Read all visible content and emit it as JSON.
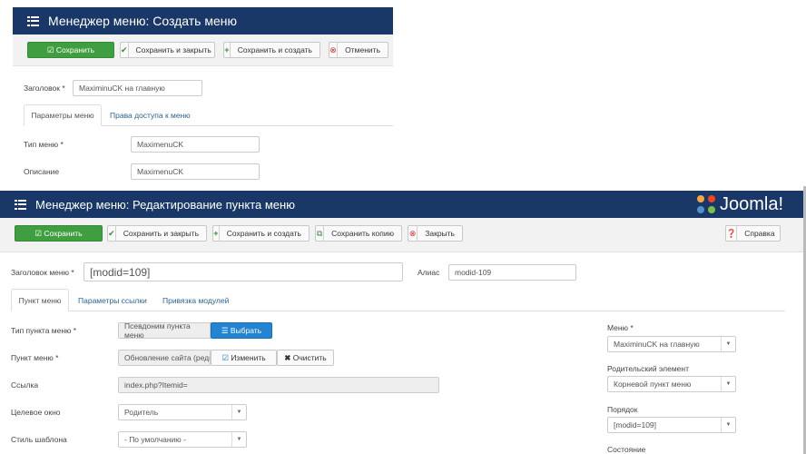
{
  "create_menu": {
    "title": "Менеджер меню: Создать меню",
    "toolbar": {
      "save": "Сохранить",
      "save_close": "Сохранить и закрыть",
      "save_new": "Сохранить и создать",
      "cancel": "Отменить"
    },
    "title_label": "Заголовок *",
    "title_value": "MaximinuCK на главную",
    "tabs": [
      "Параметры меню",
      "Права доступа к меню"
    ],
    "menu_type_label": "Тип меню *",
    "menu_type_value": "MaximenuCK",
    "description_label": "Описание",
    "description_value": "MaximenuCK"
  },
  "edit_item": {
    "title": "Менеджер меню: Редактирование пункта меню",
    "logo": "Joomla!",
    "toolbar": {
      "save": "Сохранить",
      "save_close": "Сохранить и закрыть",
      "save_new": "Сохранить и создать",
      "save_copy": "Сохранить копию",
      "close": "Закрыть",
      "help": "Справка"
    },
    "title_label": "Заголовок меню *",
    "title_value": "[modid=109]",
    "alias_label": "Алиас",
    "alias_value": "modid-109",
    "tabs": [
      "Пункт меню",
      "Параметры ссылки",
      "Привязка модулей"
    ],
    "fields": {
      "item_type_label": "Тип пункта меню *",
      "item_type_value": "Псевдоним пункта меню",
      "select_btn": "Выбрать",
      "menu_item_label": "Пункт меню *",
      "menu_item_value": "Обновление сайта (реди",
      "edit_btn": "Изменить",
      "clear_btn": "Очистить",
      "link_label": "Ссылка",
      "link_value": "index.php?Itemid=",
      "target_label": "Целевое окно",
      "target_value": "Родитель",
      "template_label": "Стиль шаблона",
      "template_value": "- По умолчанию -"
    },
    "side": {
      "menu_label": "Меню *",
      "menu_value": "MaximinuCK на главную",
      "parent_label": "Родительский элемент",
      "parent_value": "Корневой пункт меню",
      "order_label": "Порядок",
      "order_value": "[modid=109]",
      "status_label": "Состояние"
    }
  },
  "colors": {
    "header": "#1a3867",
    "save": "#3f9e3f",
    "primary": "#2384d3"
  }
}
